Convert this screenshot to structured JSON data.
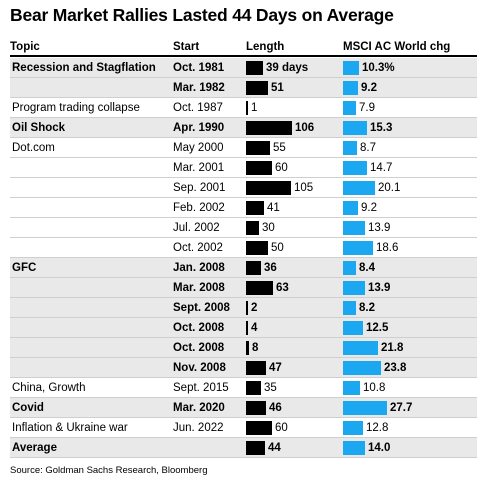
{
  "chart_data": {
    "type": "table",
    "title": "Bear Market Rallies Lasted 44 Days on Average",
    "columns": [
      "Topic",
      "Start",
      "Length",
      "MSCI AC World chg"
    ],
    "rows": [
      {
        "topic": "Recession and Stagflation",
        "start": "Oct. 1981",
        "length": 39,
        "length_label": "39 days",
        "msci": 10.3,
        "msci_label": "10.3%",
        "bold": true
      },
      {
        "topic": "",
        "start": "Mar. 1982",
        "length": 51,
        "length_label": "51",
        "msci": 9.2,
        "msci_label": "9.2",
        "bold": true
      },
      {
        "topic": "Program trading collapse",
        "start": "Oct. 1987",
        "length": 1,
        "length_label": "1",
        "msci": 7.9,
        "msci_label": "7.9",
        "bold": false
      },
      {
        "topic": "Oil Shock",
        "start": "Apr. 1990",
        "length": 106,
        "length_label": "106",
        "msci": 15.3,
        "msci_label": "15.3",
        "bold": true
      },
      {
        "topic": "Dot.com",
        "start": "May 2000",
        "length": 55,
        "length_label": "55",
        "msci": 8.7,
        "msci_label": "8.7",
        "bold": false
      },
      {
        "topic": "",
        "start": "Mar. 2001",
        "length": 60,
        "length_label": "60",
        "msci": 14.7,
        "msci_label": "14.7",
        "bold": false
      },
      {
        "topic": "",
        "start": "Sep. 2001",
        "length": 105,
        "length_label": "105",
        "msci": 20.1,
        "msci_label": "20.1",
        "bold": false
      },
      {
        "topic": "",
        "start": "Feb. 2002",
        "length": 41,
        "length_label": "41",
        "msci": 9.2,
        "msci_label": "9.2",
        "bold": false
      },
      {
        "topic": "",
        "start": "Jul. 2002",
        "length": 30,
        "length_label": "30",
        "msci": 13.9,
        "msci_label": "13.9",
        "bold": false
      },
      {
        "topic": "",
        "start": "Oct. 2002",
        "length": 50,
        "length_label": "50",
        "msci": 18.6,
        "msci_label": "18.6",
        "bold": false
      },
      {
        "topic": "GFC",
        "start": "Jan. 2008",
        "length": 36,
        "length_label": "36",
        "msci": 8.4,
        "msci_label": "8.4",
        "bold": true
      },
      {
        "topic": "",
        "start": "Mar. 2008",
        "length": 63,
        "length_label": "63",
        "msci": 13.9,
        "msci_label": "13.9",
        "bold": true
      },
      {
        "topic": "",
        "start": "Sept. 2008",
        "length": 2,
        "length_label": "2",
        "msci": 8.2,
        "msci_label": "8.2",
        "bold": true
      },
      {
        "topic": "",
        "start": "Oct. 2008",
        "length": 4,
        "length_label": "4",
        "msci": 12.5,
        "msci_label": "12.5",
        "bold": true
      },
      {
        "topic": "",
        "start": "Oct. 2008",
        "length": 8,
        "length_label": "8",
        "msci": 21.8,
        "msci_label": "21.8",
        "bold": true
      },
      {
        "topic": "",
        "start": "Nov. 2008",
        "length": 47,
        "length_label": "47",
        "msci": 23.8,
        "msci_label": "23.8",
        "bold": true
      },
      {
        "topic": "China, Growth",
        "start": "Sept. 2015",
        "length": 35,
        "length_label": "35",
        "msci": 10.8,
        "msci_label": "10.8",
        "bold": false
      },
      {
        "topic": "Covid",
        "start": "Mar. 2020",
        "length": 46,
        "length_label": "46",
        "msci": 27.7,
        "msci_label": "27.7",
        "bold": true
      },
      {
        "topic": "Inflation & Ukraine war",
        "start": "Jun. 2022",
        "length": 60,
        "length_label": "60",
        "msci": 12.8,
        "msci_label": "12.8",
        "bold": false
      },
      {
        "topic": "Average",
        "start": "",
        "length": 44,
        "length_label": "44",
        "msci": 14.0,
        "msci_label": "14.0",
        "bold": true
      }
    ],
    "colors": {
      "length_bar": "#000000",
      "msci_bar": "#1ba8f0",
      "shade": "#e9e9e9"
    }
  },
  "source": "Source: Goldman Sachs Research, Bloomberg"
}
